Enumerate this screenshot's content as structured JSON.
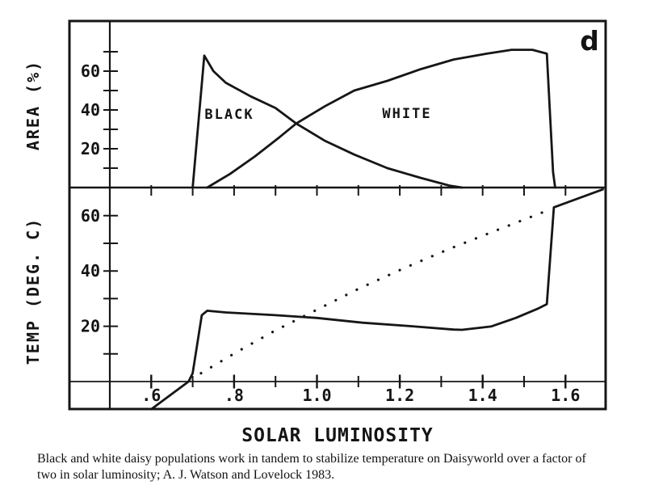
{
  "figure": {
    "panel_label": "d",
    "xlabel": "SOLAR LUMINOSITY",
    "top_panel": {
      "ylabel": "AREA (%)",
      "black_label": "BLACK",
      "white_label": "WHITE"
    },
    "bottom_panel": {
      "ylabel": "TEMP (DEG. C)"
    }
  },
  "axes": {
    "x_minor_ticks": [
      0.6,
      0.7,
      0.8,
      0.9,
      1.0,
      1.1,
      1.2,
      1.3,
      1.4,
      1.5,
      1.6
    ],
    "x_major_ticks": [
      {
        "value": 0.6,
        "label": ".6"
      },
      {
        "value": 0.8,
        "label": ".8"
      },
      {
        "value": 1.0,
        "label": "1.0"
      },
      {
        "value": 1.2,
        "label": "1.2"
      },
      {
        "value": 1.4,
        "label": "1.4"
      },
      {
        "value": 1.6,
        "label": "1.6"
      }
    ],
    "top_y_minor_ticks": [
      10,
      20,
      30,
      40,
      50,
      60,
      70
    ],
    "top_y_major_ticks": [
      {
        "value": 20,
        "label": "20"
      },
      {
        "value": 40,
        "label": "40"
      },
      {
        "value": 60,
        "label": "60"
      }
    ],
    "bottom_y_minor_ticks": [
      10,
      20,
      30,
      40,
      50,
      60
    ],
    "bottom_y_major_ticks": [
      {
        "value": 20,
        "label": "20"
      },
      {
        "value": 40,
        "label": "40"
      },
      {
        "value": 60,
        "label": "60"
      }
    ]
  },
  "caption": {
    "line1": "Black and white daisy populations work in tandem to stabilize temperature on Daisyworld over a factor of",
    "line2": "two in solar luminosity; A. J. Watson and Lovelock 1983."
  },
  "colors": {
    "ink": "#161616",
    "background": "#ffffff"
  },
  "chart_data": [
    {
      "type": "line",
      "panel": "top",
      "title": "",
      "xlabel": "SOLAR LUMINOSITY",
      "ylabel": "AREA (%)",
      "xlim": [
        0.4,
        1.7
      ],
      "ylim": [
        0,
        86
      ],
      "grid": false,
      "legend_position": "inline-labels",
      "series": [
        {
          "name": "black daisies",
          "label": "BLACK",
          "style": "solid",
          "points": [
            [
              0.7,
              0
            ],
            [
              0.728,
              68
            ],
            [
              0.75,
              60
            ],
            [
              0.78,
              54
            ],
            [
              0.84,
              47
            ],
            [
              0.9,
              41
            ],
            [
              0.95,
              33
            ],
            [
              1.02,
              24
            ],
            [
              1.09,
              17
            ],
            [
              1.17,
              10
            ],
            [
              1.25,
              5
            ],
            [
              1.32,
              1
            ],
            [
              1.35,
              0
            ]
          ]
        },
        {
          "name": "white daisies",
          "label": "WHITE",
          "style": "solid",
          "points": [
            [
              0.735,
              0
            ],
            [
              0.79,
              7
            ],
            [
              0.85,
              16
            ],
            [
              0.91,
              26
            ],
            [
              0.95,
              33
            ],
            [
              1.02,
              42
            ],
            [
              1.09,
              50
            ],
            [
              1.17,
              55
            ],
            [
              1.25,
              61
            ],
            [
              1.33,
              66
            ],
            [
              1.41,
              69
            ],
            [
              1.47,
              71
            ],
            [
              1.52,
              71
            ],
            [
              1.555,
              69
            ],
            [
              1.57,
              8
            ],
            [
              1.575,
              0
            ]
          ]
        }
      ]
    },
    {
      "type": "line",
      "panel": "bottom",
      "title": "",
      "xlabel": "SOLAR LUMINOSITY",
      "ylabel": "TEMP (DEG. C)",
      "xlim": [
        0.4,
        1.7
      ],
      "ylim": [
        -10,
        70
      ],
      "grid": false,
      "series": [
        {
          "name": "regulated temperature",
          "style": "solid",
          "points": [
            [
              0.6,
              -10
            ],
            [
              0.69,
              0
            ],
            [
              0.7,
              3
            ],
            [
              0.722,
              24
            ],
            [
              0.735,
              25.6
            ],
            [
              0.78,
              25
            ],
            [
              0.9,
              24
            ],
            [
              1.0,
              23
            ],
            [
              1.11,
              21.3
            ],
            [
              1.23,
              20
            ],
            [
              1.33,
              18.8
            ],
            [
              1.35,
              18.7
            ],
            [
              1.42,
              19.9
            ],
            [
              1.48,
              23
            ],
            [
              1.535,
              26.5
            ],
            [
              1.555,
              28
            ],
            [
              1.572,
              63
            ],
            [
              1.69,
              69.5
            ]
          ]
        },
        {
          "name": "bare planet temperature",
          "style": "dotted",
          "points": [
            [
              0.72,
              3
            ],
            [
              0.81,
              11
            ],
            [
              0.9,
              18.5
            ],
            [
              1.0,
              26
            ],
            [
              1.1,
              33.5
            ],
            [
              1.21,
              41
            ],
            [
              1.32,
              48
            ],
            [
              1.43,
              54.5
            ],
            [
              1.55,
              61.5
            ]
          ]
        }
      ]
    }
  ]
}
